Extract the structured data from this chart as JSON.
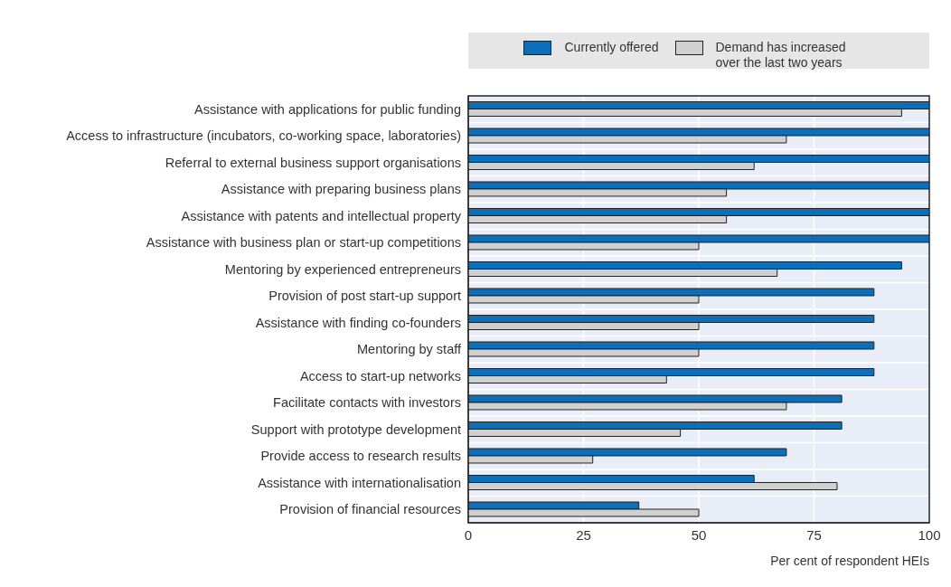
{
  "chart_data": {
    "type": "bar",
    "orientation": "horizontal",
    "categories": [
      "Assistance with applications for public funding",
      "Access to infrastructure (incubators, co-working space, laboratories)",
      "Referral to external business support organisations",
      "Assistance with preparing business plans",
      "Assistance with patents and intellectual property",
      "Assistance with business plan or start-up competitions",
      "Mentoring by experienced entrepreneurs",
      "Provision of post start-up support",
      "Assistance with finding co-founders",
      "Mentoring by staff",
      "Access to start-up networks",
      "Facilitate contacts with investors",
      "Support with prototype development",
      "Provide access to research results",
      "Assistance with internationalisation",
      "Provision of financial resources"
    ],
    "series": [
      {
        "name": "Currently offered",
        "color": "#0b6fba",
        "values": [
          100,
          100,
          100,
          100,
          100,
          100,
          94,
          88,
          88,
          88,
          88,
          81,
          81,
          69,
          62,
          37
        ]
      },
      {
        "name": "Demand has increased over the last two years",
        "color": "#d0d0d0",
        "values": [
          94,
          69,
          62,
          56,
          56,
          50,
          67,
          50,
          50,
          50,
          43,
          69,
          46,
          27,
          80,
          50
        ]
      }
    ],
    "xlim": [
      0,
      100
    ],
    "xticks": [
      0,
      25,
      50,
      75,
      100
    ],
    "xlabel": "Per cent of respondent HEIs",
    "grid": true,
    "legend": "top"
  }
}
